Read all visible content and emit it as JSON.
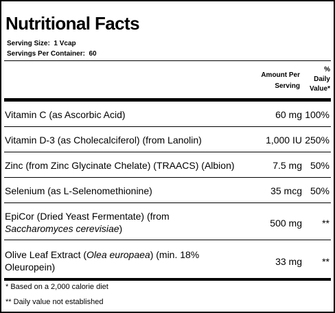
{
  "title": "Nutritional Facts",
  "serving": {
    "size_label": "Serving Size:",
    "size_value": "1 Vcap",
    "container_label": "Servings Per Container:",
    "container_value": "60"
  },
  "header": {
    "amount_line1": "Amount Per",
    "amount_line2": "Serving",
    "dv_line1": "%",
    "dv_line2": "Daily",
    "dv_line3": "Value*"
  },
  "nutrients": [
    {
      "name": "Vitamin C (as Ascorbic Acid)",
      "amount": "60 mg",
      "dv": "100%"
    },
    {
      "name": "Vitamin D-3 (as Cholecalciferol) (from Lanolin)",
      "amount": "1,000 IU",
      "dv": "250%"
    },
    {
      "name": "Zinc (from Zinc Glycinate Chelate) (TRAACS) (Albion)",
      "amount": "7.5 mg",
      "dv": "50%"
    },
    {
      "name": "Selenium (as L-Selenomethionine)",
      "amount": "35 mcg",
      "dv": "50%"
    },
    {
      "name_plain_1": "EpiCor (Dried Yeast Fermentate) (from",
      "name_italic": "Saccharomyces cerevisiae",
      "name_plain_2": ")",
      "amount": "500 mg",
      "dv": "**"
    },
    {
      "name_plain_1": "Olive Leaf Extract (",
      "name_italic": "Olea europaea",
      "name_plain_2": ") (min. 18%",
      "name_line2": "Oleuropein)",
      "amount": "33 mg",
      "dv": "**"
    }
  ],
  "footnotes": {
    "calorie_note": "* Based on a 2,000 calorie diet",
    "dv_note": "** Daily value not established"
  }
}
